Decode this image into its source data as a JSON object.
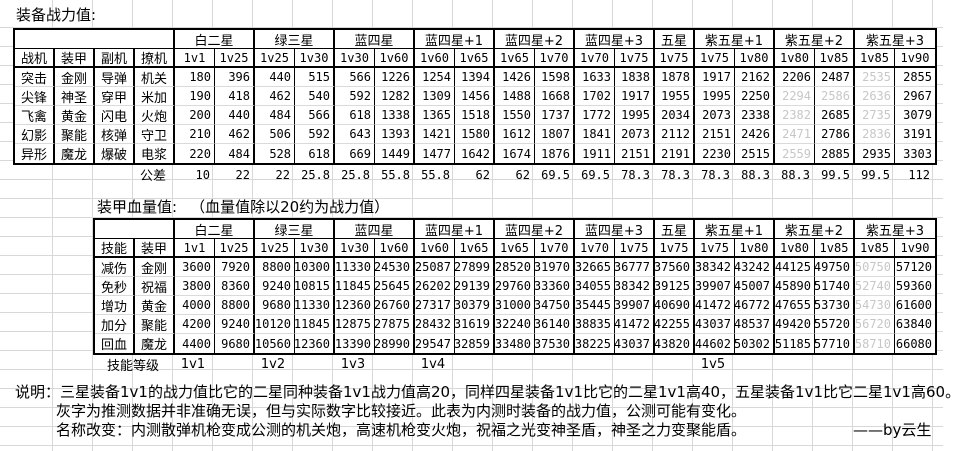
{
  "page": {
    "title1": "装备战力值:",
    "title2_label": "装甲血量值:",
    "title2_note": "（血量值除以20约为战力值）",
    "notes": {
      "line1_prefix": "说明：",
      "line1": "三星装备1v1的战力值比它的二星同种装备1v1战力值高20，同样四星装备1v1比它的二星1v1高40，五星装备1v1比它二星1v1高60。",
      "line2": "灰字为推测数据并非准确无误，但与实际数字比较接近。此表为内测时装备的战力值，公测可能有变化。",
      "line3": "名称改变：内测散弹机枪变成公测的机关炮，高速机枪变火炮，祝福之光变神圣盾，神圣之力变聚能盾。",
      "signature": "——by云生"
    }
  },
  "colors": {
    "gray_estimate_text": "#c7c7c7",
    "grid_line": "#d8d8d8",
    "table_border": "#000000"
  },
  "power_table": {
    "corner_labels": [
      "战机",
      "装甲",
      "副机",
      "撩机"
    ],
    "groups": [
      {
        "label": "白二星",
        "cols": [
          "1v1",
          "1v25"
        ]
      },
      {
        "label": "绿三星",
        "cols": [
          "1v25",
          "1v30"
        ]
      },
      {
        "label": "蓝四星",
        "cols": [
          "1v30",
          "1v60"
        ]
      },
      {
        "label": "蓝四星+1",
        "cols": [
          "1v60",
          "1v65"
        ]
      },
      {
        "label": "蓝四星+2",
        "cols": [
          "1v65",
          "1v70"
        ]
      },
      {
        "label": "蓝四星+3",
        "cols": [
          "1v70",
          "1v75"
        ]
      },
      {
        "label": "五星",
        "cols": [
          "1v75"
        ]
      },
      {
        "label": "紫五星+1",
        "cols": [
          "1v75",
          "1v80"
        ]
      },
      {
        "label": "紫五星+2",
        "cols": [
          "1v80",
          "1v85"
        ]
      },
      {
        "label": "紫五星+3",
        "cols": [
          "1v85",
          "1v90"
        ]
      }
    ],
    "rows": [
      {
        "labels": [
          "突击",
          "金刚",
          "导弹",
          "机关"
        ],
        "values": [
          180,
          396,
          440,
          515,
          566,
          1226,
          1254,
          1394,
          1426,
          1598,
          1633,
          1838,
          1878,
          1917,
          2162,
          2206,
          2487,
          2535,
          2855
        ],
        "gray": [
          17
        ]
      },
      {
        "labels": [
          "尖锋",
          "神圣",
          "穿甲",
          "米加"
        ],
        "values": [
          190,
          418,
          462,
          540,
          592,
          1282,
          1309,
          1456,
          1488,
          1668,
          1702,
          1917,
          1955,
          1995,
          2250,
          2294,
          2586,
          2636,
          2967
        ],
        "gray": [
          15,
          16,
          17
        ]
      },
      {
        "labels": [
          "飞禽",
          "黄金",
          "闪电",
          "火炮"
        ],
        "values": [
          200,
          440,
          484,
          566,
          618,
          1338,
          1365,
          1518,
          1550,
          1737,
          1772,
          1995,
          2034,
          2073,
          2338,
          2382,
          2685,
          2735,
          3079
        ],
        "gray": [
          15,
          17
        ]
      },
      {
        "labels": [
          "幻影",
          "聚能",
          "核弹",
          "守卫"
        ],
        "values": [
          210,
          462,
          506,
          592,
          643,
          1393,
          1421,
          1580,
          1612,
          1807,
          1841,
          2073,
          2112,
          2151,
          2426,
          2471,
          2786,
          2836,
          3191
        ],
        "gray": [
          15,
          17
        ]
      },
      {
        "labels": [
          "异形",
          "魔龙",
          "爆破",
          "电浆"
        ],
        "values": [
          220,
          484,
          528,
          618,
          669,
          1449,
          1477,
          1642,
          1674,
          1876,
          1911,
          2151,
          2191,
          2230,
          2515,
          2559,
          2885,
          2935,
          3303
        ],
        "gray": [
          15
        ]
      }
    ],
    "footer": {
      "label": "公差",
      "label_col": 3,
      "label_span": 1,
      "numeric": true,
      "values": [
        "10",
        "22",
        "22",
        "25.8",
        "25.8",
        "55.8",
        "55.8",
        "62",
        "62",
        "69.5",
        "69.5",
        "78.3",
        "78.3",
        "78.3",
        "88.3",
        "88.3",
        "99.5",
        "99.5",
        "112"
      ]
    }
  },
  "hp_table": {
    "corner_labels": [
      "技能",
      "装甲"
    ],
    "groups": [
      {
        "label": "白二星",
        "cols": [
          "1v1",
          "1v25"
        ]
      },
      {
        "label": "绿三星",
        "cols": [
          "1v25",
          "1v30"
        ]
      },
      {
        "label": "蓝四星",
        "cols": [
          "1v30",
          "1v60"
        ]
      },
      {
        "label": "蓝四星+1",
        "cols": [
          "1v60",
          "1v65"
        ]
      },
      {
        "label": "蓝四星+2",
        "cols": [
          "1v65",
          "1v70"
        ]
      },
      {
        "label": "蓝四星+3",
        "cols": [
          "1v70",
          "1v75"
        ]
      },
      {
        "label": "五星",
        "cols": [
          "1v75"
        ]
      },
      {
        "label": "紫五星+1",
        "cols": [
          "1v75",
          "1v80"
        ]
      },
      {
        "label": "紫五星+2",
        "cols": [
          "1v80",
          "1v85"
        ]
      },
      {
        "label": "紫五星+3",
        "cols": [
          "1v85",
          "1v90"
        ]
      }
    ],
    "rows": [
      {
        "labels": [
          "减伤",
          "金刚"
        ],
        "values": [
          3600,
          7920,
          8800,
          10300,
          11330,
          24530,
          25087,
          27899,
          28520,
          31970,
          32665,
          36777,
          37560,
          38342,
          43242,
          44125,
          49750,
          50750,
          57120
        ],
        "gray": [
          17
        ]
      },
      {
        "labels": [
          "免秒",
          "祝福"
        ],
        "values": [
          3800,
          8360,
          9240,
          10815,
          11845,
          25645,
          26202,
          29139,
          29760,
          33360,
          34055,
          38342,
          39125,
          39907,
          45007,
          45890,
          51740,
          52740,
          59360
        ],
        "gray": [
          17
        ]
      },
      {
        "labels": [
          "增功",
          "黄金"
        ],
        "values": [
          4000,
          8800,
          9680,
          11330,
          12360,
          26760,
          27317,
          30379,
          31000,
          34750,
          35445,
          39907,
          40690,
          41472,
          46772,
          47655,
          53730,
          54730,
          61600
        ],
        "gray": [
          17
        ]
      },
      {
        "labels": [
          "加分",
          "聚能"
        ],
        "values": [
          4200,
          9240,
          10120,
          11845,
          12875,
          27875,
          28432,
          31619,
          32240,
          36140,
          38835,
          41472,
          42255,
          43037,
          48537,
          49420,
          55720,
          56720,
          63840
        ],
        "gray": [
          17
        ]
      },
      {
        "labels": [
          "回血",
          "魔龙"
        ],
        "values": [
          4400,
          9680,
          10560,
          12360,
          13390,
          28990,
          29547,
          32859,
          33480,
          37530,
          38225,
          43037,
          43820,
          44602,
          50302,
          51185,
          57710,
          58710,
          66080
        ],
        "gray": [
          17
        ]
      }
    ],
    "footer": {
      "label": "技能等级",
      "label_col": 0,
      "label_span": 2,
      "numeric": false,
      "values": [
        "1v1",
        "",
        "1v2",
        "",
        "1v3",
        "",
        "1v4",
        "",
        "",
        "",
        "",
        "",
        "",
        "1v5",
        "",
        "",
        "",
        "",
        ""
      ]
    }
  }
}
